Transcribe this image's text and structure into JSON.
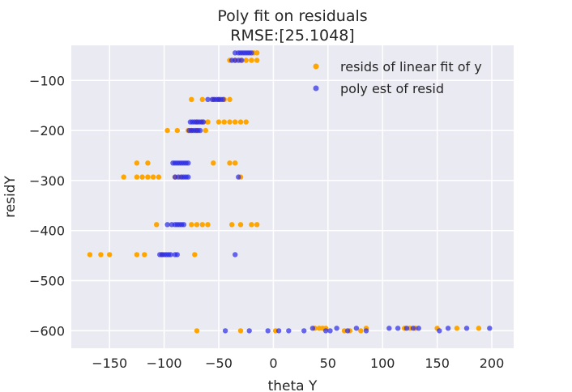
{
  "chart_data": {
    "type": "scatter",
    "title": "Poly fit on residuals",
    "subtitle": "RMSE:[25.1048]",
    "xlabel": "theta Y",
    "ylabel": "residY",
    "xlim": [
      -185,
      220
    ],
    "ylim": [
      -635,
      -30
    ],
    "xticks": [
      -150,
      -100,
      -50,
      0,
      50,
      100,
      150,
      200
    ],
    "yticks": [
      -100,
      -200,
      -300,
      -400,
      -500,
      -600
    ],
    "xtick_labels": [
      "−150",
      "−100",
      "−50",
      "0",
      "50",
      "100",
      "150",
      "200"
    ],
    "ytick_labels": [
      "−100",
      "−200",
      "−300",
      "−400",
      "−500",
      "−600"
    ],
    "grid": true,
    "legend_position": "top-right",
    "series": [
      {
        "name": "resids of linear fit of y",
        "color": "#FFA500",
        "points": [
          [
            -18,
            -45
          ],
          [
            -15,
            -45
          ],
          [
            -40,
            -60
          ],
          [
            -35,
            -60
          ],
          [
            -30,
            -60
          ],
          [
            -25,
            -60
          ],
          [
            -20,
            -60
          ],
          [
            -15,
            -60
          ],
          [
            -75,
            -138
          ],
          [
            -65,
            -138
          ],
          [
            -55,
            -138
          ],
          [
            -50,
            -138
          ],
          [
            -45,
            -138
          ],
          [
            -40,
            -138
          ],
          [
            -97,
            -200
          ],
          [
            -88,
            -200
          ],
          [
            -78,
            -200
          ],
          [
            -75,
            -200
          ],
          [
            -70,
            -200
          ],
          [
            -62,
            -200
          ],
          [
            -70,
            -183
          ],
          [
            -65,
            -183
          ],
          [
            -60,
            -183
          ],
          [
            -50,
            -183
          ],
          [
            -45,
            -183
          ],
          [
            -40,
            -183
          ],
          [
            -35,
            -183
          ],
          [
            -30,
            -183
          ],
          [
            -25,
            -183
          ],
          [
            -125,
            -265
          ],
          [
            -115,
            -265
          ],
          [
            -55,
            -265
          ],
          [
            -40,
            -265
          ],
          [
            -35,
            -265
          ],
          [
            -137,
            -293
          ],
          [
            -125,
            -293
          ],
          [
            -120,
            -293
          ],
          [
            -115,
            -293
          ],
          [
            -110,
            -293
          ],
          [
            -105,
            -293
          ],
          [
            -90,
            -293
          ],
          [
            -85,
            -293
          ],
          [
            -30,
            -293
          ],
          [
            -107,
            -388
          ],
          [
            -75,
            -388
          ],
          [
            -70,
            -388
          ],
          [
            -65,
            -388
          ],
          [
            -60,
            -388
          ],
          [
            -38,
            -388
          ],
          [
            -30,
            -388
          ],
          [
            -20,
            -388
          ],
          [
            -15,
            -388
          ],
          [
            -168,
            -448
          ],
          [
            -158,
            -448
          ],
          [
            -150,
            -448
          ],
          [
            -125,
            -448
          ],
          [
            -118,
            -448
          ],
          [
            -102,
            -448
          ],
          [
            -72,
            -448
          ],
          [
            -70,
            -600
          ],
          [
            -30,
            -600
          ],
          [
            2,
            -600
          ],
          [
            38,
            -595
          ],
          [
            42,
            -595
          ],
          [
            45,
            -595
          ],
          [
            48,
            -595
          ],
          [
            65,
            -600
          ],
          [
            70,
            -600
          ],
          [
            80,
            -600
          ],
          [
            85,
            -595
          ],
          [
            120,
            -595
          ],
          [
            125,
            -595
          ],
          [
            130,
            -595
          ],
          [
            150,
            -595
          ],
          [
            168,
            -595
          ],
          [
            188,
            -595
          ]
        ]
      },
      {
        "name": "poly est of resid",
        "color": "#2A2AE8",
        "points": [
          [
            -35,
            -45
          ],
          [
            -32,
            -45
          ],
          [
            -30,
            -45
          ],
          [
            -28,
            -45
          ],
          [
            -26,
            -45
          ],
          [
            -24,
            -45
          ],
          [
            -22,
            -45
          ],
          [
            -20,
            -45
          ],
          [
            -38,
            -60
          ],
          [
            -35,
            -60
          ],
          [
            -32,
            -60
          ],
          [
            -29,
            -60
          ],
          [
            -60,
            -138
          ],
          [
            -56,
            -138
          ],
          [
            -54,
            -138
          ],
          [
            -52,
            -138
          ],
          [
            -50,
            -138
          ],
          [
            -48,
            -138
          ],
          [
            -46,
            -138
          ],
          [
            -76,
            -183
          ],
          [
            -74,
            -183
          ],
          [
            -72,
            -183
          ],
          [
            -70,
            -183
          ],
          [
            -68,
            -183
          ],
          [
            -66,
            -183
          ],
          [
            -64,
            -183
          ],
          [
            -77,
            -200
          ],
          [
            -75,
            -200
          ],
          [
            -73,
            -200
          ],
          [
            -71,
            -200
          ],
          [
            -69,
            -200
          ],
          [
            -67,
            -200
          ],
          [
            -92,
            -265
          ],
          [
            -90,
            -265
          ],
          [
            -88,
            -265
          ],
          [
            -86,
            -265
          ],
          [
            -84,
            -265
          ],
          [
            -82,
            -265
          ],
          [
            -80,
            -265
          ],
          [
            -78,
            -265
          ],
          [
            -90,
            -293
          ],
          [
            -87,
            -293
          ],
          [
            -84,
            -293
          ],
          [
            -82,
            -293
          ],
          [
            -80,
            -293
          ],
          [
            -78,
            -293
          ],
          [
            -32,
            -293
          ],
          [
            -97,
            -388
          ],
          [
            -93,
            -388
          ],
          [
            -90,
            -388
          ],
          [
            -88,
            -388
          ],
          [
            -86,
            -388
          ],
          [
            -84,
            -388
          ],
          [
            -82,
            -388
          ],
          [
            -104,
            -448
          ],
          [
            -102,
            -448
          ],
          [
            -100,
            -448
          ],
          [
            -98,
            -448
          ],
          [
            -96,
            -448
          ],
          [
            -94,
            -448
          ],
          [
            -90,
            -448
          ],
          [
            -88,
            -448
          ],
          [
            -35,
            -448
          ],
          [
            -44,
            -600
          ],
          [
            -22,
            -600
          ],
          [
            -5,
            -600
          ],
          [
            5,
            -600
          ],
          [
            14,
            -600
          ],
          [
            28,
            -600
          ],
          [
            36,
            -595
          ],
          [
            48,
            -600
          ],
          [
            52,
            -600
          ],
          [
            58,
            -595
          ],
          [
            68,
            -600
          ],
          [
            76,
            -595
          ],
          [
            85,
            -600
          ],
          [
            106,
            -595
          ],
          [
            114,
            -595
          ],
          [
            122,
            -595
          ],
          [
            128,
            -595
          ],
          [
            133,
            -595
          ],
          [
            152,
            -600
          ],
          [
            160,
            -595
          ],
          [
            177,
            -595
          ],
          [
            198,
            -595
          ]
        ]
      }
    ]
  }
}
